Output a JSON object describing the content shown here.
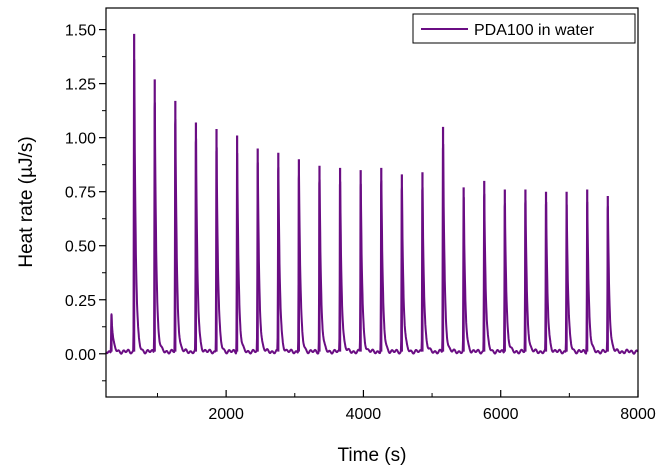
{
  "chart_data": {
    "type": "line",
    "title": "",
    "xlabel": "Time (s)",
    "ylabel": "Heat rate (µJ/s)",
    "xlim": [
      250,
      8000
    ],
    "ylim": [
      -0.2,
      1.6
    ],
    "x_ticks": [
      {
        "value": 2000,
        "label": "2000"
      },
      {
        "value": 4000,
        "label": "4000"
      },
      {
        "value": 6000,
        "label": "6000"
      },
      {
        "value": 8000,
        "label": "8000"
      }
    ],
    "x_minor_ticks": [
      1000,
      3000,
      5000,
      7000
    ],
    "y_ticks": [
      {
        "value": 0.0,
        "label": "0.00"
      },
      {
        "value": 0.25,
        "label": "0.25"
      },
      {
        "value": 0.5,
        "label": "0.50"
      },
      {
        "value": 0.75,
        "label": "0.75"
      },
      {
        "value": 1.0,
        "label": "1.00"
      },
      {
        "value": 1.25,
        "label": "1.25"
      },
      {
        "value": 1.5,
        "label": "1.50"
      }
    ],
    "y_minor_ticks": [
      -0.125,
      0.125,
      0.375,
      0.625,
      0.875,
      1.125,
      1.375
    ],
    "grid": false,
    "legend": {
      "position": "top-right"
    },
    "series": [
      {
        "name": "PDA100 in water",
        "color": "#6a0d83",
        "baseline": 0.01,
        "peaks": [
          {
            "x": 330,
            "y": 0.18
          },
          {
            "x": 660,
            "y": 1.48
          },
          {
            "x": 960,
            "y": 1.27
          },
          {
            "x": 1260,
            "y": 1.17
          },
          {
            "x": 1560,
            "y": 1.07
          },
          {
            "x": 1860,
            "y": 1.04
          },
          {
            "x": 2160,
            "y": 1.01
          },
          {
            "x": 2460,
            "y": 0.95
          },
          {
            "x": 2760,
            "y": 0.93
          },
          {
            "x": 3060,
            "y": 0.9
          },
          {
            "x": 3360,
            "y": 0.87
          },
          {
            "x": 3660,
            "y": 0.86
          },
          {
            "x": 3960,
            "y": 0.85
          },
          {
            "x": 4260,
            "y": 0.86
          },
          {
            "x": 4560,
            "y": 0.83
          },
          {
            "x": 4860,
            "y": 0.84
          },
          {
            "x": 5160,
            "y": 1.05
          },
          {
            "x": 5460,
            "y": 0.77
          },
          {
            "x": 5760,
            "y": 0.8
          },
          {
            "x": 6060,
            "y": 0.76
          },
          {
            "x": 6360,
            "y": 0.76
          },
          {
            "x": 6660,
            "y": 0.75
          },
          {
            "x": 6960,
            "y": 0.75
          },
          {
            "x": 7260,
            "y": 0.76
          },
          {
            "x": 7560,
            "y": 0.73
          }
        ]
      }
    ]
  }
}
